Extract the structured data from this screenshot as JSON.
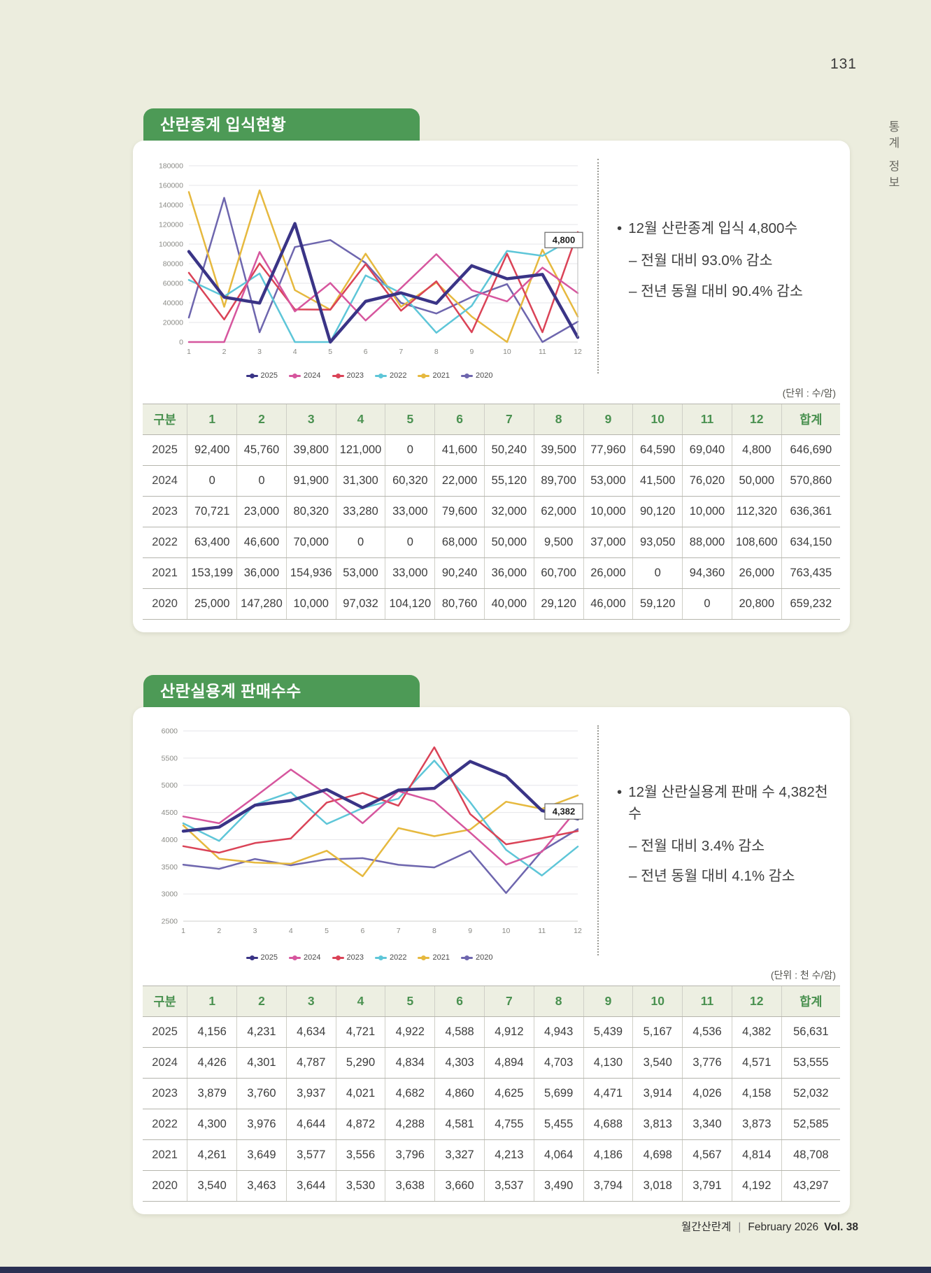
{
  "page": {
    "number": "131",
    "side_label": "통계 정보",
    "footer": {
      "magazine": "월간산란계",
      "separator": "|",
      "issue": "February 2026",
      "volume": "Vol. 38"
    }
  },
  "colors": {
    "page_bg": "#ecedde",
    "accent_green": "#4d9a56",
    "accent_green_dark": "#4a9150",
    "bottom_bar": "#2a3052",
    "series_colors": {
      "2025": "#3a3486",
      "2024": "#d6569e",
      "2023": "#da4357",
      "2022": "#5ec6d8",
      "2021": "#e6b93f",
      "2020": "#6e66ae"
    }
  },
  "sections": [
    {
      "title": "산란종계 입식현황",
      "unit_label": "(단위 : 수/암)",
      "note": {
        "marker": "•",
        "headline": "12월 산란종계 입식 4,800수",
        "details": [
          "– 전월 대비 93.0% 감소",
          "– 전년 동월 대비 90.4% 감소"
        ]
      },
      "chart_data": {
        "type": "line",
        "title": "산란종계 입식현황",
        "xlabel": "",
        "ylabel": "",
        "x": [
          1,
          2,
          3,
          4,
          5,
          6,
          7,
          8,
          9,
          10,
          11,
          12
        ],
        "ylim": [
          0,
          180000
        ],
        "ytick_step": 20000,
        "grid": true,
        "legend_position": "bottom",
        "annotation": {
          "label": "4,800",
          "series": "2025",
          "month": 12,
          "box_level": 112000
        },
        "series": [
          {
            "name": "2025",
            "values": [
              92400,
              45760,
              39800,
              121000,
              0,
              41600,
              50240,
              39500,
              77960,
              64590,
              69040,
              4800
            ]
          },
          {
            "name": "2024",
            "values": [
              0,
              0,
              91900,
              31300,
              60320,
              22000,
              55120,
              89700,
              53000,
              41500,
              76020,
              50000
            ]
          },
          {
            "name": "2023",
            "values": [
              70721,
              23000,
              80320,
              33280,
              33000,
              79600,
              32000,
              62000,
              10000,
              90120,
              10000,
              112320
            ]
          },
          {
            "name": "2022",
            "values": [
              63400,
              46600,
              70000,
              0,
              0,
              68000,
              50000,
              9500,
              37000,
              93050,
              88000,
              108600
            ]
          },
          {
            "name": "2021",
            "values": [
              153199,
              36000,
              154936,
              53000,
              33000,
              90240,
              36000,
              60700,
              26000,
              0,
              94360,
              26000
            ]
          },
          {
            "name": "2020",
            "values": [
              25000,
              147280,
              10000,
              97032,
              104120,
              80760,
              40000,
              29120,
              46000,
              59120,
              0,
              20800
            ]
          }
        ]
      },
      "table": {
        "headers": [
          "구분",
          "1",
          "2",
          "3",
          "4",
          "5",
          "6",
          "7",
          "8",
          "9",
          "10",
          "11",
          "12",
          "합계"
        ],
        "rows": [
          [
            "2025",
            "92,400",
            "45,760",
            "39,800",
            "121,000",
            "0",
            "41,600",
            "50,240",
            "39,500",
            "77,960",
            "64,590",
            "69,040",
            "4,800",
            "646,690"
          ],
          [
            "2024",
            "0",
            "0",
            "91,900",
            "31,300",
            "60,320",
            "22,000",
            "55,120",
            "89,700",
            "53,000",
            "41,500",
            "76,020",
            "50,000",
            "570,860"
          ],
          [
            "2023",
            "70,721",
            "23,000",
            "80,320",
            "33,280",
            "33,000",
            "79,600",
            "32,000",
            "62,000",
            "10,000",
            "90,120",
            "10,000",
            "112,320",
            "636,361"
          ],
          [
            "2022",
            "63,400",
            "46,600",
            "70,000",
            "0",
            "0",
            "68,000",
            "50,000",
            "9,500",
            "37,000",
            "93,050",
            "88,000",
            "108,600",
            "634,150"
          ],
          [
            "2021",
            "153,199",
            "36,000",
            "154,936",
            "53,000",
            "33,000",
            "90,240",
            "36,000",
            "60,700",
            "26,000",
            "0",
            "94,360",
            "26,000",
            "763,435"
          ],
          [
            "2020",
            "25,000",
            "147,280",
            "10,000",
            "97,032",
            "104,120",
            "80,760",
            "40,000",
            "29,120",
            "46,000",
            "59,120",
            "0",
            "20,800",
            "659,232"
          ]
        ]
      }
    },
    {
      "title": "산란실용계 판매수수",
      "unit_label": "(단위 : 천 수/암)",
      "note": {
        "marker": "•",
        "headline": "12월 산란실용계 판매 수 4,382천 수",
        "details": [
          "– 전월 대비 3.4% 감소",
          "– 전년 동월 대비 4.1% 감소"
        ]
      },
      "chart_data": {
        "type": "line",
        "title": "산란실용계 판매수수",
        "xlabel": "",
        "ylabel": "",
        "x": [
          1,
          2,
          3,
          4,
          5,
          6,
          7,
          8,
          9,
          10,
          11,
          12
        ],
        "ylim": [
          2500,
          6000
        ],
        "ytick_step": 500,
        "grid": true,
        "legend_position": "bottom",
        "annotation": {
          "label": "4,382",
          "series": "2025",
          "month": 12,
          "box_level": 4660
        },
        "series": [
          {
            "name": "2025",
            "values": [
              4156,
              4231,
              4634,
              4721,
              4922,
              4588,
              4912,
              4943,
              5439,
              5167,
              4536,
              4382
            ]
          },
          {
            "name": "2024",
            "values": [
              4426,
              4301,
              4787,
              5290,
              4834,
              4303,
              4894,
              4703,
              4130,
              3540,
              3776,
              4571
            ]
          },
          {
            "name": "2023",
            "values": [
              3879,
              3760,
              3937,
              4021,
              4682,
              4860,
              4625,
              5699,
              4471,
              3914,
              4026,
              4158
            ]
          },
          {
            "name": "2022",
            "values": [
              4300,
              3976,
              4644,
              4872,
              4288,
              4581,
              4755,
              5455,
              4688,
              3813,
              3340,
              3873
            ]
          },
          {
            "name": "2021",
            "values": [
              4261,
              3649,
              3577,
              3556,
              3796,
              3327,
              4213,
              4064,
              4186,
              4698,
              4567,
              4814
            ]
          },
          {
            "name": "2020",
            "values": [
              3540,
              3463,
              3644,
              3530,
              3638,
              3660,
              3537,
              3490,
              3794,
              3018,
              3791,
              4192
            ]
          }
        ]
      },
      "table": {
        "headers": [
          "구분",
          "1",
          "2",
          "3",
          "4",
          "5",
          "6",
          "7",
          "8",
          "9",
          "10",
          "11",
          "12",
          "합계"
        ],
        "rows": [
          [
            "2025",
            "4,156",
            "4,231",
            "4,634",
            "4,721",
            "4,922",
            "4,588",
            "4,912",
            "4,943",
            "5,439",
            "5,167",
            "4,536",
            "4,382",
            "56,631"
          ],
          [
            "2024",
            "4,426",
            "4,301",
            "4,787",
            "5,290",
            "4,834",
            "4,303",
            "4,894",
            "4,703",
            "4,130",
            "3,540",
            "3,776",
            "4,571",
            "53,555"
          ],
          [
            "2023",
            "3,879",
            "3,760",
            "3,937",
            "4,021",
            "4,682",
            "4,860",
            "4,625",
            "5,699",
            "4,471",
            "3,914",
            "4,026",
            "4,158",
            "52,032"
          ],
          [
            "2022",
            "4,300",
            "3,976",
            "4,644",
            "4,872",
            "4,288",
            "4,581",
            "4,755",
            "5,455",
            "4,688",
            "3,813",
            "3,340",
            "3,873",
            "52,585"
          ],
          [
            "2021",
            "4,261",
            "3,649",
            "3,577",
            "3,556",
            "3,796",
            "3,327",
            "4,213",
            "4,064",
            "4,186",
            "4,698",
            "4,567",
            "4,814",
            "48,708"
          ],
          [
            "2020",
            "3,540",
            "3,463",
            "3,644",
            "3,530",
            "3,638",
            "3,660",
            "3,537",
            "3,490",
            "3,794",
            "3,018",
            "3,791",
            "4,192",
            "43,297"
          ]
        ]
      }
    }
  ]
}
